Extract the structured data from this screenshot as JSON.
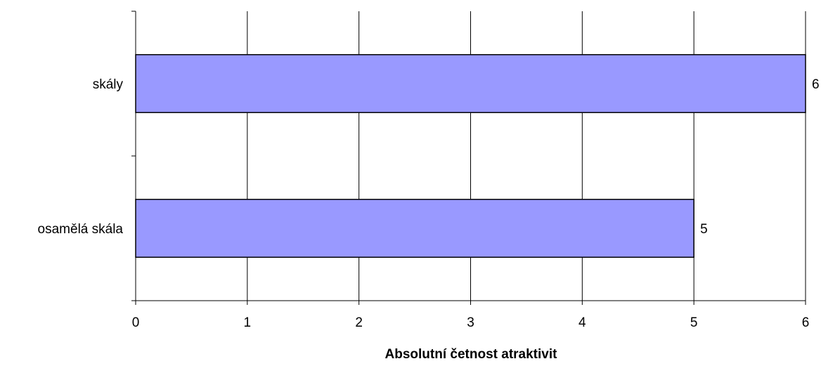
{
  "chart_data": {
    "type": "bar",
    "orientation": "horizontal",
    "categories": [
      "skály",
      "osamělá skála"
    ],
    "values": [
      6,
      5
    ],
    "data_labels": [
      "6",
      "5"
    ],
    "x_ticks": [
      "0",
      "1",
      "2",
      "3",
      "4",
      "5",
      "6"
    ],
    "xlabel": "Absolutní četnost atraktivit",
    "ylabel": "",
    "xlim": [
      0,
      6
    ],
    "grid": "vertical",
    "legend": "none",
    "bar_color": "#9999ff",
    "bar_border_color": "#000000"
  }
}
